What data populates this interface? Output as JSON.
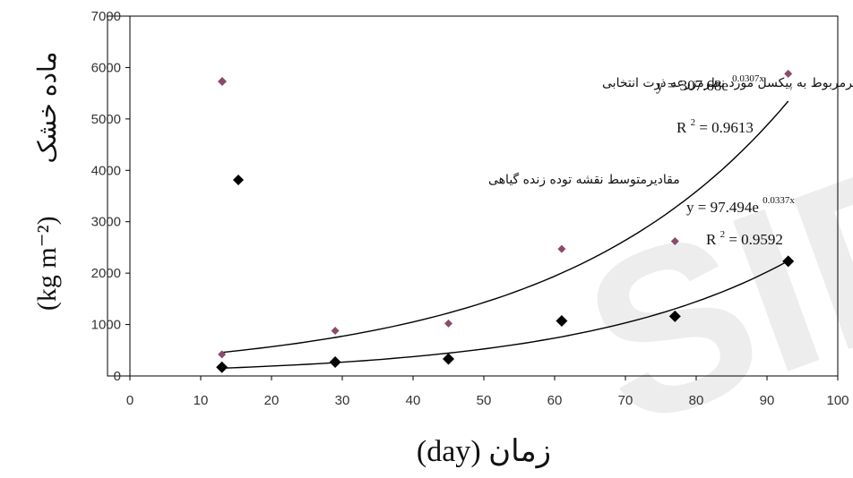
{
  "chart_data": {
    "type": "scatter",
    "xlabel": "زمان (day)",
    "ylabel_text": "ماده خشک",
    "ylabel_unit": "(kg m⁻²)",
    "xlim": [
      0,
      100
    ],
    "ylim": [
      0,
      7000
    ],
    "xticks": [
      0,
      10,
      20,
      30,
      40,
      50,
      60,
      70,
      80,
      90,
      100
    ],
    "yticks": [
      0,
      1000,
      2000,
      3000,
      4000,
      5000,
      6000,
      7000
    ],
    "grid": false,
    "series": [
      {
        "name": "مقادیرمربوط به پیکسل مورد نظرمزرعه ذرت انتخابی",
        "marker": "diamond-small",
        "color": "#8b4a6b",
        "x": [
          13,
          29,
          45,
          61,
          77,
          93
        ],
        "y": [
          420,
          880,
          1020,
          2470,
          2620,
          5880
        ],
        "trend": {
          "a": 307.68,
          "b": 0.0307,
          "equation_prefix": "y = 307.68e",
          "exponent": "0.0307x",
          "r2_prefix": "R",
          "r2_value": " = 0.9613"
        }
      },
      {
        "name": "مقادیرمتوسط نقشه توده زنده گیاهی",
        "marker": "diamond-large",
        "color": "#000000",
        "x": [
          13,
          29,
          45,
          61,
          77,
          93
        ],
        "y": [
          170,
          270,
          330,
          1070,
          1160,
          2230
        ],
        "trend": {
          "a": 97.494,
          "b": 0.0337,
          "equation_prefix": "y = 97.494e",
          "exponent": "0.0337x",
          "r2_prefix": "R",
          "r2_value": " = 0.9592"
        }
      }
    ]
  }
}
